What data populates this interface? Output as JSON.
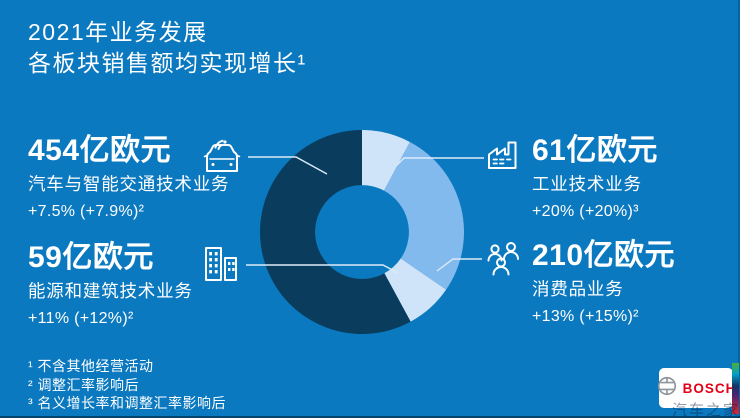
{
  "title": {
    "line1": "2021年业务发展",
    "line2": "各板块销售额均实现增长¹"
  },
  "stats": [
    {
      "id": "mobility",
      "amount": "454",
      "unit": "亿欧元",
      "label": "汽车与智能交通技术业务",
      "growth": "+7.5% (+7.9%)²",
      "icon": "connected-car-icon"
    },
    {
      "id": "energy",
      "amount": "59",
      "unit": "亿欧元",
      "label": "能源和建筑技术业务",
      "growth": "+11% (+12%)²",
      "icon": "buildings-icon"
    },
    {
      "id": "industrial",
      "amount": "61",
      "unit": "亿欧元",
      "label": "工业技术业务",
      "growth": "+20% (+20%)³",
      "icon": "factory-icon"
    },
    {
      "id": "consumer",
      "amount": "210",
      "unit": "亿欧元",
      "label": "消费品业务",
      "growth": "+13% (+15%)²",
      "icon": "people-icon"
    }
  ],
  "footnotes": [
    "¹ 不含其他经营活动",
    "² 调整汇率影响后",
    "³ 名义增长率和调整汇率影响后"
  ],
  "logo": {
    "wordmark": "BOSCH"
  },
  "watermark": "汽车之家",
  "colors": {
    "background": "#0b79c0",
    "segment_dark": "#0a3c5e",
    "segment_pale": "#cfe4f8",
    "segment_medium": "#82baee",
    "leader_line": "#dcebf8",
    "bosch_red": "#e30016",
    "text": "#ffffff"
  },
  "chart_data": {
    "type": "pie",
    "donut": true,
    "title": "2021年业务发展 各板块销售额均实现增长",
    "unit": "亿欧元",
    "start_angle_deg": 0,
    "clockwise": true,
    "inner_radius_ratio": 0.46,
    "legend_position": "none",
    "segments": [
      {
        "id": "industrial",
        "label": "工业技术业务",
        "value": 61,
        "growth": "+20% (+20%)³",
        "color": "#cfe4f8"
      },
      {
        "id": "consumer",
        "label": "消费品业务",
        "value": 210,
        "growth": "+13% (+15%)²",
        "color": "#82baee"
      },
      {
        "id": "energy",
        "label": "能源和建筑技术业务",
        "value": 59,
        "growth": "+11% (+12%)²",
        "color": "#cfe4f8"
      },
      {
        "id": "mobility",
        "label": "汽车与智能交通技术业务",
        "value": 454,
        "growth": "+7.5% (+7.9%)²",
        "color": "#0a3c5e"
      }
    ]
  }
}
